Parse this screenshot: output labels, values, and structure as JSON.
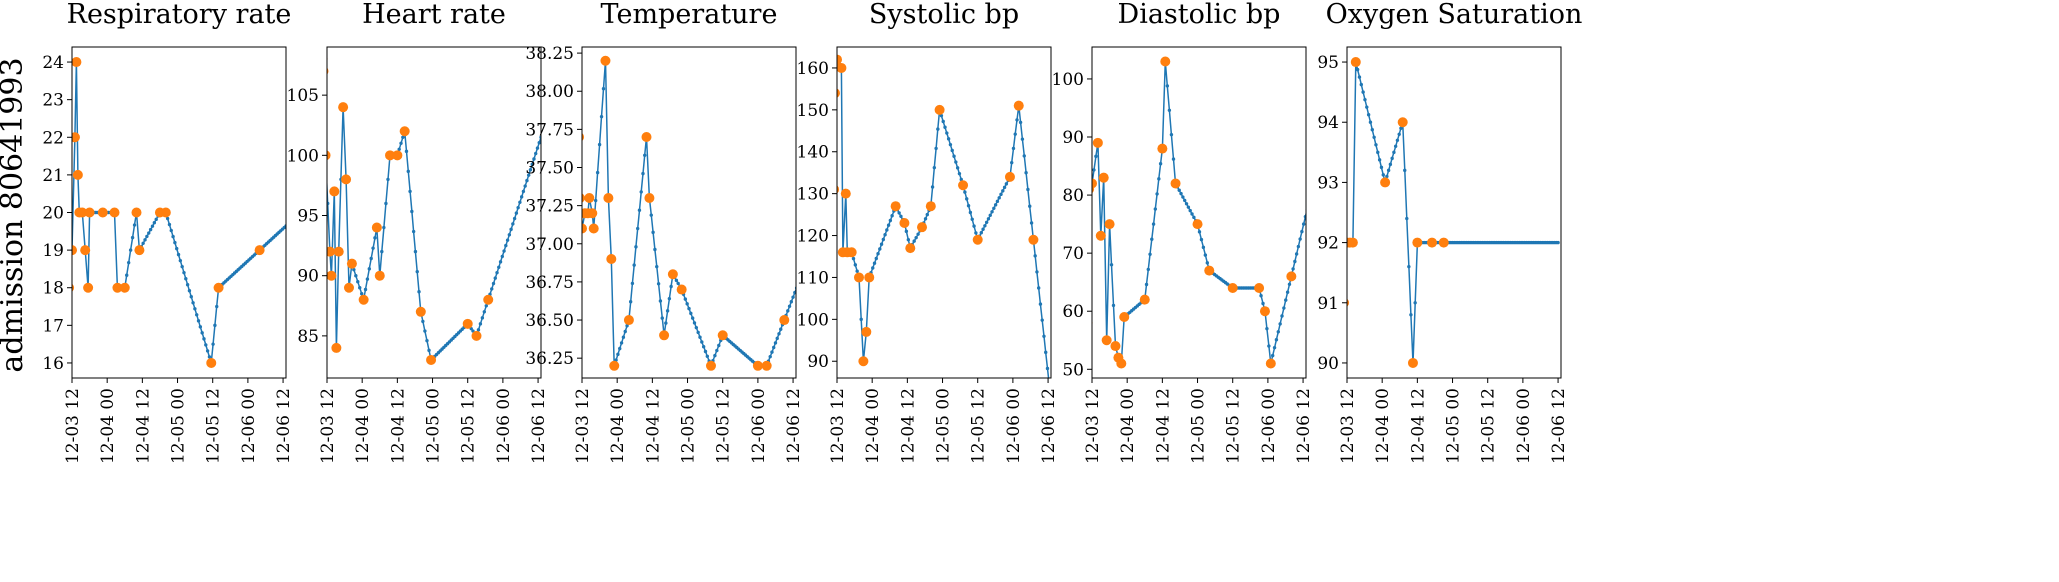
{
  "figure": {
    "row_label": "admission 80641993",
    "line_color": "#1f77b4",
    "marker_color": "#ff7f0e"
  },
  "chart_data": [
    {
      "type": "line",
      "title": "Respiratory rate",
      "x_unit": "hours",
      "x_ticks": [
        {
          "x": 12,
          "label": "12-03 12"
        },
        {
          "x": 24,
          "label": "12-04 00"
        },
        {
          "x": 36,
          "label": "12-04 12"
        },
        {
          "x": 48,
          "label": "12-05 00"
        },
        {
          "x": 60,
          "label": "12-05 12"
        },
        {
          "x": 72,
          "label": "12-06 00"
        },
        {
          "x": 84,
          "label": "12-06 12"
        }
      ],
      "xlim": [
        12,
        85
      ],
      "ylim": [
        15.6,
        24.4
      ],
      "y_ticks": [
        16,
        17,
        18,
        19,
        20,
        21,
        22,
        23,
        24
      ],
      "y_tick_labels": [
        "16",
        "17",
        "18",
        "19",
        "20",
        "21",
        "22",
        "23",
        "24"
      ],
      "interp_end": 86,
      "observations": [
        [
          9.5,
          22
        ],
        [
          10.5,
          18
        ],
        [
          11,
          18
        ],
        [
          12,
          19
        ],
        [
          13,
          22
        ],
        [
          13.5,
          24
        ],
        [
          14,
          21
        ],
        [
          14.5,
          20
        ],
        [
          15.5,
          20
        ],
        [
          16.5,
          19
        ],
        [
          17.5,
          18
        ],
        [
          18,
          20
        ],
        [
          22.5,
          20
        ],
        [
          26.5,
          20
        ],
        [
          27.5,
          18
        ],
        [
          30,
          18
        ],
        [
          34,
          20
        ],
        [
          35,
          19
        ],
        [
          42,
          20
        ],
        [
          44,
          20
        ],
        [
          59.5,
          16
        ],
        [
          62,
          18
        ],
        [
          76,
          19
        ]
      ]
    },
    {
      "type": "line",
      "title": "Heart rate",
      "x_unit": "hours",
      "x_ticks": [
        {
          "x": 12,
          "label": "12-03 12"
        },
        {
          "x": 24,
          "label": "12-04 00"
        },
        {
          "x": 36,
          "label": "12-04 12"
        },
        {
          "x": 48,
          "label": "12-05 00"
        },
        {
          "x": 60,
          "label": "12-05 12"
        },
        {
          "x": 72,
          "label": "12-06 00"
        },
        {
          "x": 84,
          "label": "12-06 12"
        }
      ],
      "xlim": [
        12,
        85
      ],
      "ylim": [
        81.5,
        109
      ],
      "y_ticks": [
        85,
        90,
        95,
        100,
        105
      ],
      "y_tick_labels": [
        "85",
        "90",
        "95",
        "100",
        "105"
      ],
      "interp_end": 86,
      "observations": [
        [
          10.5,
          108
        ],
        [
          10.8,
          107
        ],
        [
          11.5,
          100
        ],
        [
          13,
          92
        ],
        [
          13.5,
          90
        ],
        [
          14.5,
          97
        ],
        [
          15.2,
          84
        ],
        [
          16,
          92
        ],
        [
          17.5,
          104
        ],
        [
          18.5,
          98
        ],
        [
          19.5,
          89
        ],
        [
          20.5,
          91
        ],
        [
          24.5,
          88
        ],
        [
          29,
          94
        ],
        [
          30,
          90
        ],
        [
          33.5,
          100
        ],
        [
          36,
          100
        ],
        [
          38.5,
          102
        ],
        [
          44,
          87
        ],
        [
          47.5,
          83
        ],
        [
          60,
          86
        ],
        [
          63,
          85
        ],
        [
          67,
          88
        ]
      ]
    },
    {
      "type": "line",
      "title": "Temperature",
      "x_unit": "hours",
      "x_ticks": [
        {
          "x": 12,
          "label": "12-03 12"
        },
        {
          "x": 24,
          "label": "12-04 00"
        },
        {
          "x": 36,
          "label": "12-04 12"
        },
        {
          "x": 48,
          "label": "12-05 00"
        },
        {
          "x": 60,
          "label": "12-05 12"
        },
        {
          "x": 72,
          "label": "12-06 00"
        },
        {
          "x": 84,
          "label": "12-06 12"
        }
      ],
      "xlim": [
        12,
        85
      ],
      "ylim": [
        36.12,
        38.29
      ],
      "y_ticks": [
        36.25,
        36.5,
        36.75,
        37.0,
        37.25,
        37.5,
        37.75,
        38.0,
        38.25
      ],
      "y_tick_labels": [
        "36.25",
        "36.50",
        "36.75",
        "37.00",
        "37.25",
        "37.50",
        "37.75",
        "38.00",
        "38.25"
      ],
      "interp_end": 86,
      "observations": [
        [
          11,
          37.7
        ],
        [
          11.3,
          37.3
        ],
        [
          12,
          37.1
        ],
        [
          13,
          37.2
        ],
        [
          14,
          37.2
        ],
        [
          14.5,
          37.3
        ],
        [
          15.5,
          37.2
        ],
        [
          16,
          37.1
        ],
        [
          20,
          38.2
        ],
        [
          21,
          37.3
        ],
        [
          22,
          36.9
        ],
        [
          23,
          36.2
        ],
        [
          28,
          36.5
        ],
        [
          34,
          37.7
        ],
        [
          35,
          37.3
        ],
        [
          40,
          36.4
        ],
        [
          43,
          36.8
        ],
        [
          46,
          36.7
        ],
        [
          56,
          36.2
        ],
        [
          60,
          36.4
        ],
        [
          72,
          36.2
        ],
        [
          75,
          36.2
        ],
        [
          81,
          36.5
        ]
      ]
    },
    {
      "type": "line",
      "title": "Systolic bp",
      "x_unit": "hours",
      "x_ticks": [
        {
          "x": 12,
          "label": "12-03 12"
        },
        {
          "x": 24,
          "label": "12-04 00"
        },
        {
          "x": 36,
          "label": "12-04 12"
        },
        {
          "x": 48,
          "label": "12-05 00"
        },
        {
          "x": 60,
          "label": "12-05 12"
        },
        {
          "x": 72,
          "label": "12-06 00"
        },
        {
          "x": 84,
          "label": "12-06 12"
        }
      ],
      "xlim": [
        12,
        85
      ],
      "ylim": [
        86,
        165
      ],
      "y_ticks": [
        90,
        100,
        110,
        120,
        130,
        140,
        150,
        160
      ],
      "y_tick_labels": [
        "90",
        "100",
        "110",
        "120",
        "130",
        "140",
        "150",
        "160"
      ],
      "interp_end": 86,
      "observations": [
        [
          11,
          131
        ],
        [
          11.3,
          154
        ],
        [
          12,
          162
        ],
        [
          13.5,
          160
        ],
        [
          14,
          116
        ],
        [
          15,
          130
        ],
        [
          15.5,
          116
        ],
        [
          17,
          116
        ],
        [
          19.5,
          110
        ],
        [
          21,
          90
        ],
        [
          22,
          97
        ],
        [
          23,
          110
        ],
        [
          32,
          127
        ],
        [
          35,
          123
        ],
        [
          37,
          117
        ],
        [
          41,
          122
        ],
        [
          44,
          127
        ],
        [
          47,
          150
        ],
        [
          55,
          132
        ],
        [
          60,
          119
        ],
        [
          71,
          134
        ],
        [
          74,
          151
        ],
        [
          79,
          119
        ]
      ]
    },
    {
      "type": "line",
      "title": "Diastolic bp",
      "x_unit": "hours",
      "x_ticks": [
        {
          "x": 12,
          "label": "12-03 12"
        },
        {
          "x": 24,
          "label": "12-04 00"
        },
        {
          "x": 36,
          "label": "12-04 12"
        },
        {
          "x": 48,
          "label": "12-05 00"
        },
        {
          "x": 60,
          "label": "12-05 12"
        },
        {
          "x": 72,
          "label": "12-06 00"
        },
        {
          "x": 84,
          "label": "12-06 12"
        }
      ],
      "xlim": [
        12,
        85
      ],
      "ylim": [
        48.5,
        105.5
      ],
      "y_ticks": [
        50,
        60,
        70,
        80,
        90,
        100
      ],
      "y_tick_labels": [
        "50",
        "60",
        "70",
        "80",
        "90",
        "100"
      ],
      "interp_end": 86,
      "observations": [
        [
          10.5,
          58
        ],
        [
          11,
          81
        ],
        [
          12,
          82
        ],
        [
          14,
          89
        ],
        [
          15,
          73
        ],
        [
          16,
          83
        ],
        [
          17,
          55
        ],
        [
          18,
          75
        ],
        [
          20,
          54
        ],
        [
          21,
          52
        ],
        [
          22,
          51
        ],
        [
          23,
          59
        ],
        [
          30,
          62
        ],
        [
          36,
          88
        ],
        [
          37,
          103
        ],
        [
          40.5,
          82
        ],
        [
          48,
          75
        ],
        [
          52,
          67
        ],
        [
          60,
          64
        ],
        [
          69,
          64
        ],
        [
          71,
          60
        ],
        [
          73,
          51
        ],
        [
          80,
          66
        ]
      ]
    },
    {
      "type": "line",
      "title": "Oxygen Saturation",
      "x_unit": "hours",
      "x_ticks": [
        {
          "x": 12,
          "label": "12-03 12"
        },
        {
          "x": 24,
          "label": "12-04 00"
        },
        {
          "x": 36,
          "label": "12-04 12"
        },
        {
          "x": 48,
          "label": "12-05 00"
        },
        {
          "x": 60,
          "label": "12-05 12"
        },
        {
          "x": 72,
          "label": "12-06 00"
        },
        {
          "x": 84,
          "label": "12-06 12"
        }
      ],
      "xlim": [
        12,
        85
      ],
      "ylim": [
        89.75,
        95.25
      ],
      "y_ticks": [
        90,
        91,
        92,
        93,
        94,
        95
      ],
      "y_tick_labels": [
        "90",
        "91",
        "92",
        "93",
        "94",
        "95"
      ],
      "interp_end": 84,
      "observations": [
        [
          11,
          91
        ],
        [
          12,
          92
        ],
        [
          13,
          92
        ],
        [
          14,
          92
        ],
        [
          15,
          95
        ],
        [
          25,
          93
        ],
        [
          31,
          94
        ],
        [
          34.5,
          90
        ],
        [
          36,
          92
        ],
        [
          41,
          92
        ],
        [
          45,
          92
        ]
      ]
    }
  ]
}
